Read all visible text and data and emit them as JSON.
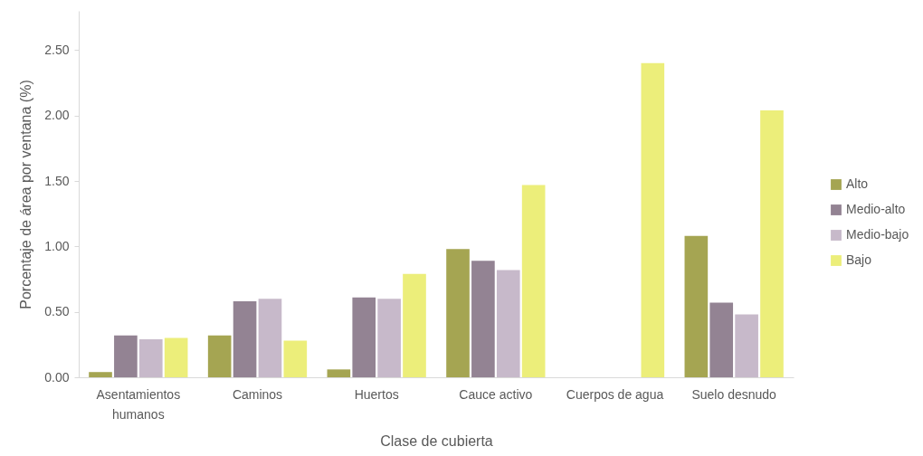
{
  "chart_data": {
    "type": "bar",
    "xlabel": "Clase de cubierta",
    "ylabel": "Porcentaje de área por ventana (%)",
    "categories": [
      "Asentamientos humanos",
      "Caminos",
      "Huertos",
      "Cauce activo",
      "Cuerpos de agua",
      "Suelo desnudo"
    ],
    "series": [
      {
        "name": "Alto",
        "color": "#a5a552",
        "values": [
          0.04,
          0.32,
          0.06,
          0.98,
          null,
          1.08
        ]
      },
      {
        "name": "Medio-alto",
        "color": "#938393",
        "values": [
          0.32,
          0.58,
          0.61,
          0.89,
          null,
          0.57
        ]
      },
      {
        "name": "Medio-bajo",
        "color": "#c7b9ca",
        "values": [
          0.29,
          0.6,
          0.6,
          0.82,
          null,
          0.48
        ]
      },
      {
        "name": "Bajo",
        "color": "#ecee7a",
        "values": [
          0.3,
          0.28,
          0.79,
          1.47,
          2.4,
          2.04
        ]
      }
    ],
    "ylim": [
      0,
      2.8
    ],
    "yticks": [
      {
        "value": 0,
        "label": "0.00"
      },
      {
        "value": 0.5,
        "label": "0.50"
      },
      {
        "value": 1,
        "label": "1.00"
      },
      {
        "value": 1.5,
        "label": "1.50"
      },
      {
        "value": 2,
        "label": "2.00"
      },
      {
        "value": 2.5,
        "label": "2.50"
      }
    ],
    "grid": false,
    "legend": "right"
  }
}
